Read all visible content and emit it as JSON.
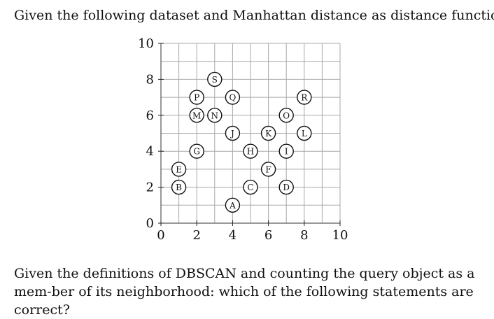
{
  "text": {
    "intro": "Given the following dataset and Manhattan distance as distance function:",
    "question": "Given the definitions of DBSCAN and counting the query object as a mem-ber of its neighborhood: which of the following statements are correct?"
  },
  "chart_data": {
    "type": "scatter",
    "title": "",
    "xlabel": "",
    "ylabel": "",
    "xlim": [
      0,
      10
    ],
    "ylim": [
      0,
      10
    ],
    "grid": true,
    "x_ticks": [
      0,
      2,
      4,
      6,
      8,
      10
    ],
    "y_ticks": [
      0,
      2,
      4,
      6,
      8,
      10
    ],
    "points": [
      {
        "label": "A",
        "x": 4,
        "y": 1
      },
      {
        "label": "B",
        "x": 1,
        "y": 2
      },
      {
        "label": "C",
        "x": 5,
        "y": 2
      },
      {
        "label": "D",
        "x": 7,
        "y": 2
      },
      {
        "label": "E",
        "x": 1,
        "y": 3
      },
      {
        "label": "F",
        "x": 6,
        "y": 3
      },
      {
        "label": "G",
        "x": 2,
        "y": 4
      },
      {
        "label": "H",
        "x": 5,
        "y": 4
      },
      {
        "label": "I",
        "x": 7,
        "y": 4
      },
      {
        "label": "J",
        "x": 4,
        "y": 5
      },
      {
        "label": "K",
        "x": 6,
        "y": 5
      },
      {
        "label": "L",
        "x": 8,
        "y": 5
      },
      {
        "label": "M",
        "x": 2,
        "y": 6
      },
      {
        "label": "N",
        "x": 3,
        "y": 6
      },
      {
        "label": "O",
        "x": 7,
        "y": 6
      },
      {
        "label": "P",
        "x": 2,
        "y": 7
      },
      {
        "label": "Q",
        "x": 4,
        "y": 7
      },
      {
        "label": "R",
        "x": 8,
        "y": 7
      },
      {
        "label": "S",
        "x": 3,
        "y": 8
      }
    ]
  }
}
